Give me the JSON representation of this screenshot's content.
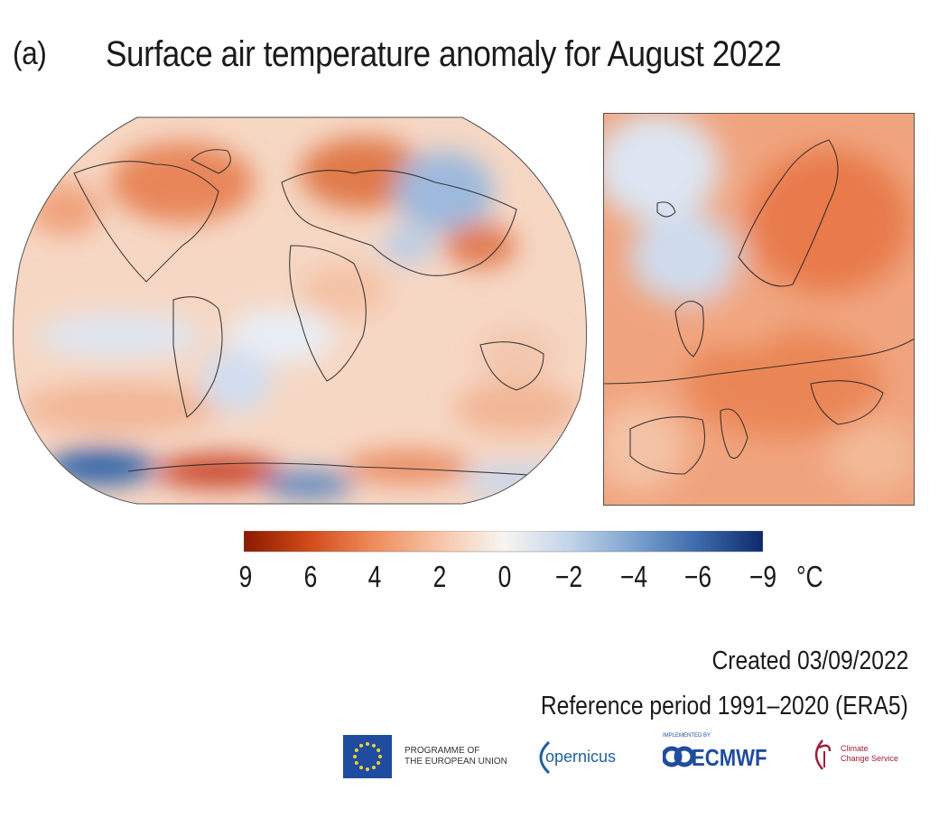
{
  "panel_label": "(a)",
  "title": "Surface air temperature anomaly for August 2022",
  "maps": {
    "world": {
      "region": "world"
    },
    "europe": {
      "region": "europe"
    }
  },
  "colorbar": {
    "ticks": [
      "9",
      "6",
      "4",
      "2",
      "0",
      "−2",
      "−4",
      "−6",
      "−9"
    ],
    "unit": "°C",
    "colors": [
      "#8b1a00",
      "#d24a1a",
      "#ef8c5c",
      "#f7c4a7",
      "#f7f4f0",
      "#c3d5ea",
      "#7ea3cf",
      "#3c6aac",
      "#0d2a6b"
    ]
  },
  "created": "Created 03/09/2022",
  "reference": "Reference period 1991–2020 (ERA5)",
  "logos": {
    "eu_text_line1": "PROGRAMME OF",
    "eu_text_line2": "THE EUROPEAN UNION",
    "copernicus": "opernicus",
    "ecmwf_small": "IMPLEMENTED BY",
    "ecmwf": "ECMWF",
    "c3s_line1": "Climate",
    "c3s_line2": "Change Service"
  }
}
